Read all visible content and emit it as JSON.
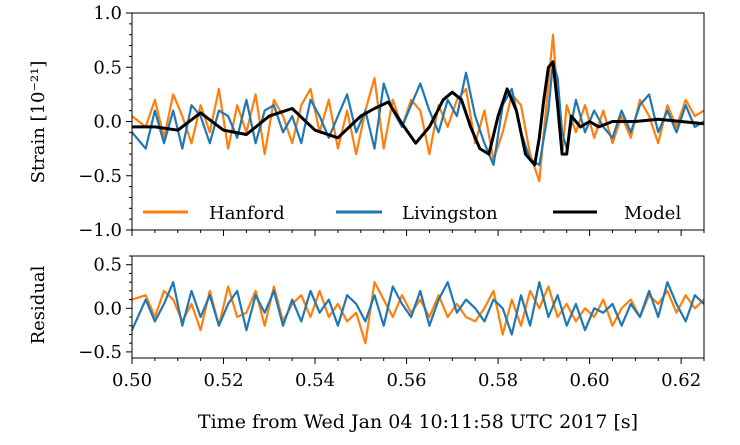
{
  "chart_data": [
    {
      "type": "line",
      "title": "",
      "ylabel": "Strain [10⁻²¹]",
      "xlim": [
        0.5,
        0.625
      ],
      "ylim": [
        -1.0,
        1.0
      ],
      "yticks": [
        {
          "value": 1.0,
          "label": "1.0"
        },
        {
          "value": 0.5,
          "label": "0.5"
        },
        {
          "value": 0.0,
          "label": "0.0"
        },
        {
          "value": -0.5,
          "label": "−0.5"
        },
        {
          "value": -1.0,
          "label": "−1.0"
        }
      ],
      "legend": {
        "placement": "bottom",
        "entries": [
          "Hanford",
          "Livingston",
          "Model"
        ]
      },
      "grid": false,
      "series": [
        {
          "name": "Hanford",
          "color": "#ff7f0e",
          "x": [
            0.5,
            0.503,
            0.505,
            0.507,
            0.509,
            0.511,
            0.513,
            0.515,
            0.517,
            0.519,
            0.521,
            0.523,
            0.525,
            0.527,
            0.529,
            0.531,
            0.533,
            0.535,
            0.537,
            0.539,
            0.541,
            0.543,
            0.545,
            0.547,
            0.549,
            0.551,
            0.553,
            0.555,
            0.557,
            0.559,
            0.561,
            0.563,
            0.565,
            0.567,
            0.569,
            0.571,
            0.573,
            0.575,
            0.577,
            0.579,
            0.581,
            0.583,
            0.585,
            0.587,
            0.589,
            0.591,
            0.592,
            0.593,
            0.594,
            0.595,
            0.597,
            0.599,
            0.601,
            0.603,
            0.605,
            0.607,
            0.609,
            0.611,
            0.613,
            0.615,
            0.617,
            0.619,
            0.621,
            0.623,
            0.625
          ],
          "y": [
            0.05,
            -0.05,
            0.2,
            -0.15,
            0.25,
            0.05,
            -0.2,
            0.15,
            -0.1,
            0.3,
            -0.25,
            0.15,
            -0.1,
            0.25,
            -0.3,
            0.2,
            0.05,
            -0.2,
            0.15,
            0.3,
            -0.1,
            0.2,
            -0.25,
            0.1,
            -0.3,
            0.1,
            0.4,
            -0.25,
            0.2,
            -0.05,
            0.2,
            0.1,
            -0.3,
            0.15,
            -0.05,
            0.2,
            0.3,
            -0.2,
            0.1,
            -0.35,
            -0.1,
            0.25,
            0.15,
            -0.3,
            -0.55,
            0.35,
            0.8,
            0.2,
            -0.3,
            0.15,
            -0.1,
            0.15,
            -0.15,
            0.1,
            -0.2,
            0.05,
            -0.15,
            0.2,
            0.05,
            -0.2,
            0.15,
            -0.05,
            0.2,
            0.05,
            0.1
          ]
        },
        {
          "name": "Livingston",
          "color": "#1f77b4",
          "x": [
            0.5,
            0.503,
            0.505,
            0.507,
            0.509,
            0.511,
            0.513,
            0.515,
            0.517,
            0.519,
            0.521,
            0.523,
            0.525,
            0.527,
            0.529,
            0.531,
            0.533,
            0.535,
            0.537,
            0.539,
            0.541,
            0.543,
            0.545,
            0.547,
            0.549,
            0.551,
            0.553,
            0.555,
            0.557,
            0.559,
            0.561,
            0.563,
            0.565,
            0.567,
            0.569,
            0.571,
            0.573,
            0.575,
            0.577,
            0.579,
            0.581,
            0.583,
            0.585,
            0.587,
            0.589,
            0.591,
            0.592,
            0.593,
            0.594,
            0.595,
            0.597,
            0.599,
            0.601,
            0.603,
            0.605,
            0.607,
            0.609,
            0.611,
            0.613,
            0.615,
            0.617,
            0.619,
            0.621,
            0.623,
            0.625
          ],
          "y": [
            -0.1,
            -0.25,
            0.1,
            -0.2,
            0.1,
            -0.25,
            0.15,
            0.05,
            -0.2,
            0.1,
            0.05,
            -0.15,
            0.2,
            -0.2,
            0.1,
            0.15,
            -0.1,
            0.05,
            -0.2,
            0.2,
            0.05,
            -0.15,
            0.05,
            0.25,
            -0.1,
            0.1,
            -0.25,
            0.35,
            0.1,
            -0.05,
            0.15,
            0.35,
            0.1,
            -0.1,
            0.2,
            0.05,
            0.45,
            0.05,
            -0.2,
            -0.4,
            0.15,
            0.3,
            -0.1,
            -0.35,
            -0.4,
            0.1,
            0.55,
            0.4,
            -0.1,
            -0.25,
            0.2,
            -0.1,
            0.1,
            -0.05,
            -0.15,
            0.1,
            -0.1,
            0.15,
            0.25,
            -0.1,
            0.1,
            -0.1,
            0.15,
            -0.05,
            0.0
          ]
        },
        {
          "name": "Model",
          "color": "#000000",
          "x": [
            0.5,
            0.505,
            0.51,
            0.515,
            0.52,
            0.525,
            0.53,
            0.535,
            0.54,
            0.545,
            0.55,
            0.553,
            0.556,
            0.559,
            0.562,
            0.565,
            0.568,
            0.57,
            0.572,
            0.574,
            0.576,
            0.578,
            0.58,
            0.582,
            0.584,
            0.586,
            0.588,
            0.589,
            0.59,
            0.591,
            0.592,
            0.593,
            0.594,
            0.595,
            0.596,
            0.597,
            0.598,
            0.6,
            0.602,
            0.605,
            0.61,
            0.615,
            0.62,
            0.625
          ],
          "y": [
            -0.05,
            -0.05,
            -0.08,
            0.08,
            -0.08,
            -0.12,
            0.05,
            0.12,
            -0.08,
            -0.15,
            0.05,
            0.12,
            0.18,
            -0.02,
            -0.2,
            -0.05,
            0.2,
            0.27,
            0.2,
            -0.05,
            -0.25,
            -0.3,
            0.05,
            0.3,
            0.1,
            -0.3,
            -0.4,
            -0.15,
            0.2,
            0.5,
            0.55,
            0.15,
            -0.3,
            -0.3,
            0.05,
            0.0,
            -0.05,
            0.0,
            -0.05,
            0.0,
            0.0,
            0.02,
            0.0,
            -0.02
          ]
        }
      ]
    },
    {
      "type": "line",
      "title": "",
      "xlabel": "Time from Wed Jan 04 10:11:58 UTC 2017 [s]",
      "ylabel": "Residual",
      "xlim": [
        0.5,
        0.625
      ],
      "ylim": [
        -0.57,
        0.6
      ],
      "xticks": [
        {
          "value": 0.5,
          "label": "0.50"
        },
        {
          "value": 0.52,
          "label": "0.52"
        },
        {
          "value": 0.54,
          "label": "0.54"
        },
        {
          "value": 0.56,
          "label": "0.56"
        },
        {
          "value": 0.58,
          "label": "0.58"
        },
        {
          "value": 0.6,
          "label": "0.60"
        },
        {
          "value": 0.62,
          "label": "0.62"
        }
      ],
      "yticks": [
        {
          "value": 0.5,
          "label": "0.5"
        },
        {
          "value": 0.0,
          "label": "0.0"
        },
        {
          "value": -0.5,
          "label": "−0.5"
        }
      ],
      "grid": false,
      "series": [
        {
          "color": "#ff7f0e",
          "x": [
            0.5,
            0.503,
            0.505,
            0.507,
            0.509,
            0.511,
            0.513,
            0.515,
            0.517,
            0.519,
            0.521,
            0.523,
            0.525,
            0.527,
            0.529,
            0.531,
            0.533,
            0.535,
            0.537,
            0.539,
            0.541,
            0.543,
            0.545,
            0.547,
            0.549,
            0.551,
            0.553,
            0.555,
            0.557,
            0.559,
            0.561,
            0.563,
            0.565,
            0.567,
            0.569,
            0.571,
            0.573,
            0.575,
            0.577,
            0.579,
            0.581,
            0.583,
            0.585,
            0.587,
            0.589,
            0.591,
            0.593,
            0.595,
            0.597,
            0.599,
            0.601,
            0.603,
            0.605,
            0.607,
            0.609,
            0.611,
            0.613,
            0.615,
            0.617,
            0.619,
            0.621,
            0.623,
            0.625
          ],
          "y": [
            0.1,
            0.15,
            -0.1,
            0.2,
            0.1,
            -0.15,
            0.05,
            -0.25,
            0.2,
            -0.2,
            0.25,
            -0.1,
            -0.05,
            0.2,
            -0.2,
            0.25,
            -0.15,
            0.05,
            0.15,
            -0.1,
            0.2,
            -0.1,
            0.05,
            -0.15,
            -0.05,
            -0.4,
            0.3,
            0.1,
            -0.1,
            0.15,
            -0.05,
            0.1,
            -0.1,
            0.15,
            -0.1,
            0.05,
            -0.1,
            -0.15,
            0.0,
            0.2,
            -0.3,
            0.1,
            -0.2,
            0.2,
            0.0,
            0.25,
            -0.1,
            0.05,
            -0.15,
            0.0,
            -0.1,
            0.1,
            -0.2,
            0.0,
            0.1,
            -0.1,
            0.15,
            0.05,
            0.2,
            -0.05,
            0.15,
            0.0,
            0.1
          ]
        },
        {
          "color": "#1f77b4",
          "x": [
            0.5,
            0.503,
            0.505,
            0.507,
            0.509,
            0.511,
            0.513,
            0.515,
            0.517,
            0.519,
            0.521,
            0.523,
            0.525,
            0.527,
            0.529,
            0.531,
            0.533,
            0.535,
            0.537,
            0.539,
            0.541,
            0.543,
            0.545,
            0.547,
            0.549,
            0.551,
            0.553,
            0.555,
            0.557,
            0.559,
            0.561,
            0.563,
            0.565,
            0.567,
            0.569,
            0.571,
            0.573,
            0.575,
            0.577,
            0.579,
            0.581,
            0.583,
            0.585,
            0.587,
            0.589,
            0.591,
            0.593,
            0.595,
            0.597,
            0.599,
            0.601,
            0.603,
            0.605,
            0.607,
            0.609,
            0.611,
            0.613,
            0.615,
            0.617,
            0.619,
            0.621,
            0.623,
            0.625
          ],
          "y": [
            -0.25,
            0.1,
            -0.15,
            0.05,
            0.3,
            -0.2,
            0.2,
            -0.1,
            0.15,
            -0.2,
            0.05,
            0.2,
            -0.25,
            0.15,
            -0.05,
            0.2,
            -0.2,
            0.1,
            -0.15,
            0.2,
            -0.05,
            0.1,
            -0.2,
            0.15,
            0.05,
            -0.15,
            0.15,
            -0.2,
            0.25,
            0.05,
            -0.1,
            0.2,
            -0.2,
            0.1,
            0.3,
            -0.05,
            0.1,
            0.0,
            -0.15,
            0.1,
            0.0,
            -0.3,
            0.15,
            -0.2,
            0.3,
            -0.1,
            0.15,
            -0.2,
            0.05,
            -0.25,
            0.0,
            -0.05,
            0.05,
            -0.2,
            0.05,
            -0.1,
            0.2,
            -0.1,
            0.3,
            0.05,
            -0.15,
            0.15,
            0.05
          ]
        }
      ]
    }
  ]
}
